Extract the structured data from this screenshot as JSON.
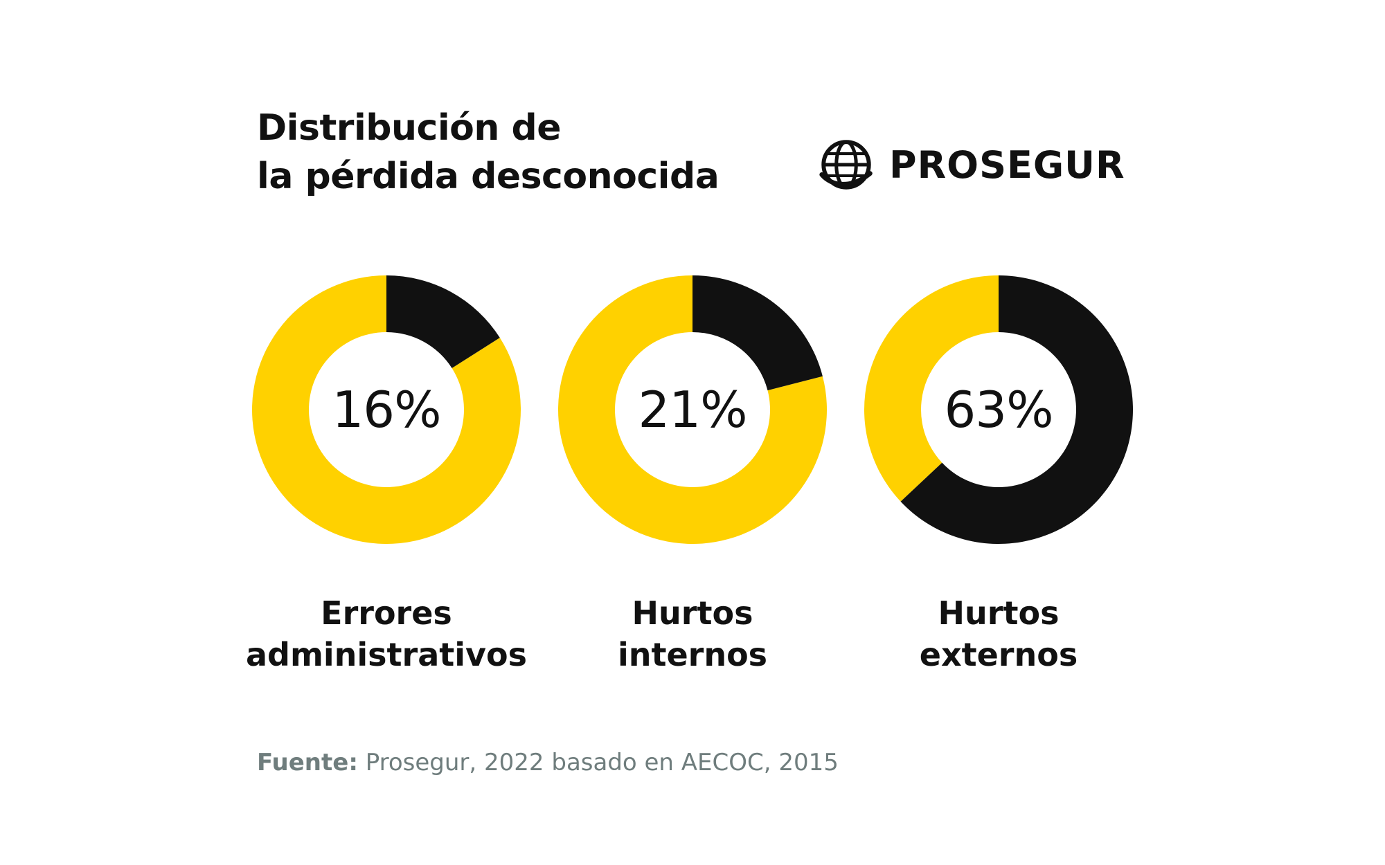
{
  "title_lines": [
    "Distribución de",
    "la pérdida desconocida"
  ],
  "brand": {
    "name": "PROSEGUR",
    "icon": "globe-icon"
  },
  "colors": {
    "accent": "#FFD100",
    "dark": "#111111",
    "background": "#FFFFFF",
    "source_text": "#6F7D7D"
  },
  "chart_data": {
    "type": "pie",
    "donuts": [
      {
        "value_label": "16%",
        "value": 16,
        "label_lines": [
          "Errores",
          "administrativos"
        ]
      },
      {
        "value_label": "21%",
        "value": 21,
        "label_lines": [
          "Hurtos",
          "internos"
        ]
      },
      {
        "value_label": "63%",
        "value": 63,
        "label_lines": [
          "Hurtos",
          "externos"
        ]
      }
    ]
  },
  "source": {
    "prefix": "Fuente:",
    "text": " Prosegur, 2022 basado en AECOC, 2015"
  }
}
